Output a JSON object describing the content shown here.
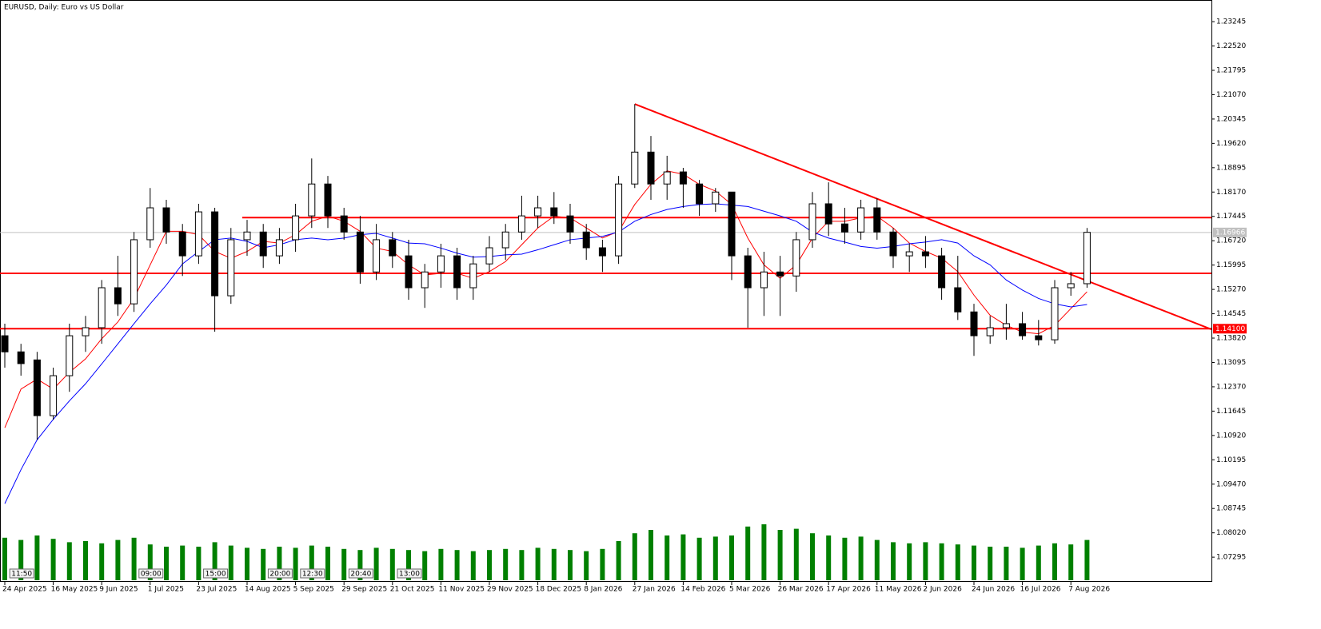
{
  "chart_data": {
    "type": "candlestick",
    "title": "EURUSD, Daily:  Euro vs US Dollar",
    "categories": [
      "24 Apr 2025",
      null,
      null,
      "16 May 2025",
      null,
      null,
      "9 Jun 2025",
      null,
      null,
      "1 Jul 2025",
      null,
      null,
      "23 Jul 2025",
      null,
      null,
      "14 Aug 2025",
      null,
      null,
      "5 Sep 2025",
      null,
      null,
      "29 Sep 2025",
      null,
      null,
      "21 Oct 2025",
      null,
      null,
      "11 Nov 2025",
      null,
      null,
      "29 Nov 2025",
      null,
      null,
      "18 Dec 2025",
      null,
      null,
      "8 Jan 2026",
      null,
      null,
      "27 Jan 2026",
      null,
      null,
      "14 Feb 2026",
      null,
      null,
      "5 Mar 2026",
      null,
      null,
      "26 Mar 2026",
      null,
      null,
      "17 Apr 2026",
      null,
      null,
      "11 May 2026",
      null,
      null,
      "2 Jun 2026",
      null,
      null,
      "24 Jun 2026",
      null,
      null,
      "16 Jul 2026",
      null,
      null,
      "7 Aug 2026",
      null
    ],
    "open": [
      1.1389,
      1.1341,
      1.1317,
      1.1151,
      1.127,
      1.1389,
      1.1413,
      1.1532,
      1.1484,
      1.1675,
      1.177,
      1.1698,
      1.1627,
      1.1758,
      1.1508,
      1.1675,
      1.1698,
      1.1627,
      1.1675,
      1.1746,
      1.1841,
      1.1746,
      1.1698,
      1.1579,
      1.1675,
      1.1627,
      1.1532,
      1.1579,
      1.1627,
      1.1532,
      1.1603,
      1.1651,
      1.1698,
      1.1746,
      1.177,
      1.1746,
      1.1698,
      1.1651,
      1.1627,
      1.1841,
      1.1936,
      1.1841,
      1.1877,
      1.1841,
      1.1782,
      1.1817,
      1.1627,
      1.1532,
      1.1579,
      1.1567,
      1.1675,
      1.1782,
      1.1722,
      1.1698,
      1.177,
      1.1698,
      1.1627,
      1.1639,
      1.1627,
      1.1532,
      1.146,
      1.1389,
      1.1413,
      1.1425,
      1.1389,
      1.1377,
      1.1532,
      1.1544
    ],
    "high": [
      1.1425,
      1.1365,
      1.1341,
      1.1294,
      1.1425,
      1.1448,
      1.1555,
      1.1627,
      1.1698,
      1.1829,
      1.1794,
      1.1722,
      1.1782,
      1.177,
      1.171,
      1.1734,
      1.1722,
      1.171,
      1.1782,
      1.1917,
      1.1865,
      1.177,
      1.1746,
      1.1722,
      1.1698,
      1.1675,
      1.1603,
      1.1663,
      1.1651,
      1.1627,
      1.1686,
      1.1722,
      1.1806,
      1.1806,
      1.1817,
      1.1782,
      1.1722,
      1.1675,
      1.1865,
      1.2079,
      1.1984,
      1.1925,
      1.1889,
      1.1853,
      1.1829,
      1.1817,
      1.1651,
      1.1639,
      1.1627,
      1.1698,
      1.1817,
      1.1846,
      1.177,
      1.1794,
      1.1798,
      1.171,
      1.1663,
      1.1686,
      1.1651,
      1.1627,
      1.1484,
      1.1448,
      1.1484,
      1.146,
      1.1436,
      1.1555,
      1.1579,
      1.171
    ],
    "low": [
      1.1294,
      1.127,
      1.1079,
      1.1139,
      1.1222,
      1.1341,
      1.1365,
      1.1448,
      1.146,
      1.1651,
      1.1663,
      1.1567,
      1.1603,
      1.1401,
      1.1484,
      1.1627,
      1.1591,
      1.1603,
      1.1639,
      1.171,
      1.171,
      1.1675,
      1.1544,
      1.1555,
      1.1591,
      1.1496,
      1.1472,
      1.1532,
      1.1496,
      1.1496,
      1.1579,
      1.1615,
      1.1675,
      1.171,
      1.1722,
      1.1663,
      1.1615,
      1.1579,
      1.1603,
      1.1829,
      1.1794,
      1.1794,
      1.177,
      1.1746,
      1.1758,
      1.1555,
      1.1413,
      1.1448,
      1.1448,
      1.152,
      1.1651,
      1.1686,
      1.1663,
      1.1675,
      1.1675,
      1.1591,
      1.1579,
      1.1591,
      1.1496,
      1.1436,
      1.1329,
      1.1365,
      1.1377,
      1.1377,
      1.136,
      1.1365,
      1.1508,
      1.1532
    ],
    "close": [
      1.1341,
      1.1306,
      1.1151,
      1.127,
      1.1389,
      1.1413,
      1.1532,
      1.1484,
      1.1675,
      1.177,
      1.1698,
      1.1627,
      1.1758,
      1.1508,
      1.1675,
      1.1698,
      1.1627,
      1.1675,
      1.1746,
      1.1841,
      1.1746,
      1.1698,
      1.1579,
      1.1675,
      1.1627,
      1.1532,
      1.1579,
      1.1627,
      1.1532,
      1.1603,
      1.1651,
      1.1698,
      1.1746,
      1.177,
      1.1746,
      1.1698,
      1.1651,
      1.1627,
      1.1841,
      1.1936,
      1.1841,
      1.1877,
      1.1841,
      1.1782,
      1.1817,
      1.1627,
      1.1532,
      1.1579,
      1.1567,
      1.1675,
      1.1782,
      1.1722,
      1.1698,
      1.177,
      1.1698,
      1.1627,
      1.1639,
      1.1627,
      1.1532,
      1.146,
      1.1389,
      1.1413,
      1.1425,
      1.1389,
      1.1377,
      1.1532,
      1.1544,
      1.1697
    ],
    "volume": [
      38,
      36,
      40,
      37,
      34,
      35,
      33,
      36,
      38,
      32,
      30,
      31,
      30,
      34,
      31,
      29,
      28,
      30,
      29,
      31,
      30,
      28,
      27,
      29,
      28,
      27,
      26,
      28,
      27,
      26,
      27,
      28,
      27,
      29,
      28,
      27,
      26,
      28,
      35,
      42,
      45,
      40,
      41,
      38,
      39,
      40,
      48,
      50,
      45,
      46,
      42,
      40,
      38,
      39,
      36,
      34,
      33,
      34,
      33,
      32,
      31,
      30,
      30,
      29,
      31,
      33,
      32,
      36
    ],
    "volume_color": "#008000",
    "series": [
      {
        "color": "#ff0000",
        "values": [
          1.1115,
          1.123,
          1.126,
          1.123,
          1.128,
          1.132,
          1.138,
          1.143,
          1.15,
          1.16,
          1.17,
          1.17,
          1.169,
          1.164,
          1.162,
          1.164,
          1.167,
          1.1665,
          1.169,
          1.173,
          1.1745,
          1.173,
          1.17,
          1.165,
          1.164,
          1.16,
          1.157,
          1.1575,
          1.1575,
          1.156,
          1.158,
          1.161,
          1.166,
          1.171,
          1.1745,
          1.174,
          1.171,
          1.168,
          1.17,
          1.178,
          1.184,
          1.188,
          1.187,
          1.184,
          1.182,
          1.178,
          1.168,
          1.16,
          1.156,
          1.16,
          1.168,
          1.173,
          1.173,
          1.174,
          1.1745,
          1.171,
          1.1665,
          1.164,
          1.162,
          1.158,
          1.151,
          1.145,
          1.142,
          1.14,
          1.1395,
          1.142,
          1.147,
          1.152
        ]
      },
      {
        "color": "#0000ff",
        "values": [
          1.0889,
          1.099,
          1.1079,
          1.114,
          1.1195,
          1.1246,
          1.1305,
          1.1365,
          1.1425,
          1.1484,
          1.154,
          1.1603,
          1.164,
          1.1675,
          1.168,
          1.167,
          1.1651,
          1.166,
          1.1675,
          1.168,
          1.1675,
          1.168,
          1.169,
          1.1694,
          1.168,
          1.1665,
          1.1663,
          1.165,
          1.1635,
          1.1623,
          1.1625,
          1.163,
          1.1632,
          1.1645,
          1.166,
          1.1675,
          1.168,
          1.1685,
          1.1698,
          1.173,
          1.175,
          1.1765,
          1.1774,
          1.178,
          1.1782,
          1.1778,
          1.1774,
          1.176,
          1.1746,
          1.173,
          1.1698,
          1.168,
          1.1668,
          1.1655,
          1.165,
          1.1655,
          1.1663,
          1.1668,
          1.1675,
          1.1665,
          1.1627,
          1.16,
          1.1555,
          1.1525,
          1.15,
          1.1484,
          1.1475,
          1.1482
        ]
      }
    ],
    "levels": [
      {
        "value": 1.1741,
        "start": 15
      },
      {
        "value": 1.1575,
        "start": 0
      },
      {
        "value": 1.141,
        "start": 0,
        "label": "1.14100"
      }
    ],
    "level_color": "#ff0000",
    "trendline": {
      "x": [
        39,
        74.7
      ],
      "y": [
        1.2079,
        1.1408
      ],
      "color": "#ff0000"
    },
    "current_price": {
      "value": 1.16966,
      "label": "1.16966"
    },
    "session_markers": [
      {
        "label": "11:50",
        "x": 1
      },
      {
        "label": "09:00",
        "x": 9
      },
      {
        "label": "15:00",
        "x": 13
      },
      {
        "label": "20:00",
        "x": 17
      },
      {
        "label": "12:30",
        "x": 19
      },
      {
        "label": "20:40",
        "x": 22
      },
      {
        "label": "13:00",
        "x": 25
      }
    ],
    "ylim": [
      1.0656,
      1.2389
    ],
    "yticks": [
      1.23245,
      {
        "value": 1.2252,
        "label": "1.22520"
      },
      1.21795,
      {
        "value": 1.2107,
        "label": "1.21070"
      },
      1.20345,
      {
        "value": 1.1962,
        "label": "1.19620"
      },
      1.18895,
      {
        "value": 1.1817,
        "label": "1.18170"
      },
      1.17445,
      {
        "value": 1.1672,
        "label": "1.16720"
      },
      1.15995,
      {
        "value": 1.1527,
        "label": "1.15270"
      },
      1.14545,
      {
        "value": 1.1382,
        "label": "1.13820"
      },
      1.13095,
      {
        "value": 1.1237,
        "label": "1.12370"
      },
      1.11645,
      {
        "value": 1.1092,
        "label": "1.10920"
      },
      1.10195,
      {
        "value": 1.0947,
        "label": "1.09470"
      },
      1.08745,
      {
        "value": 1.0802,
        "label": "1.08020"
      },
      1.07295
    ],
    "grid": false
  }
}
